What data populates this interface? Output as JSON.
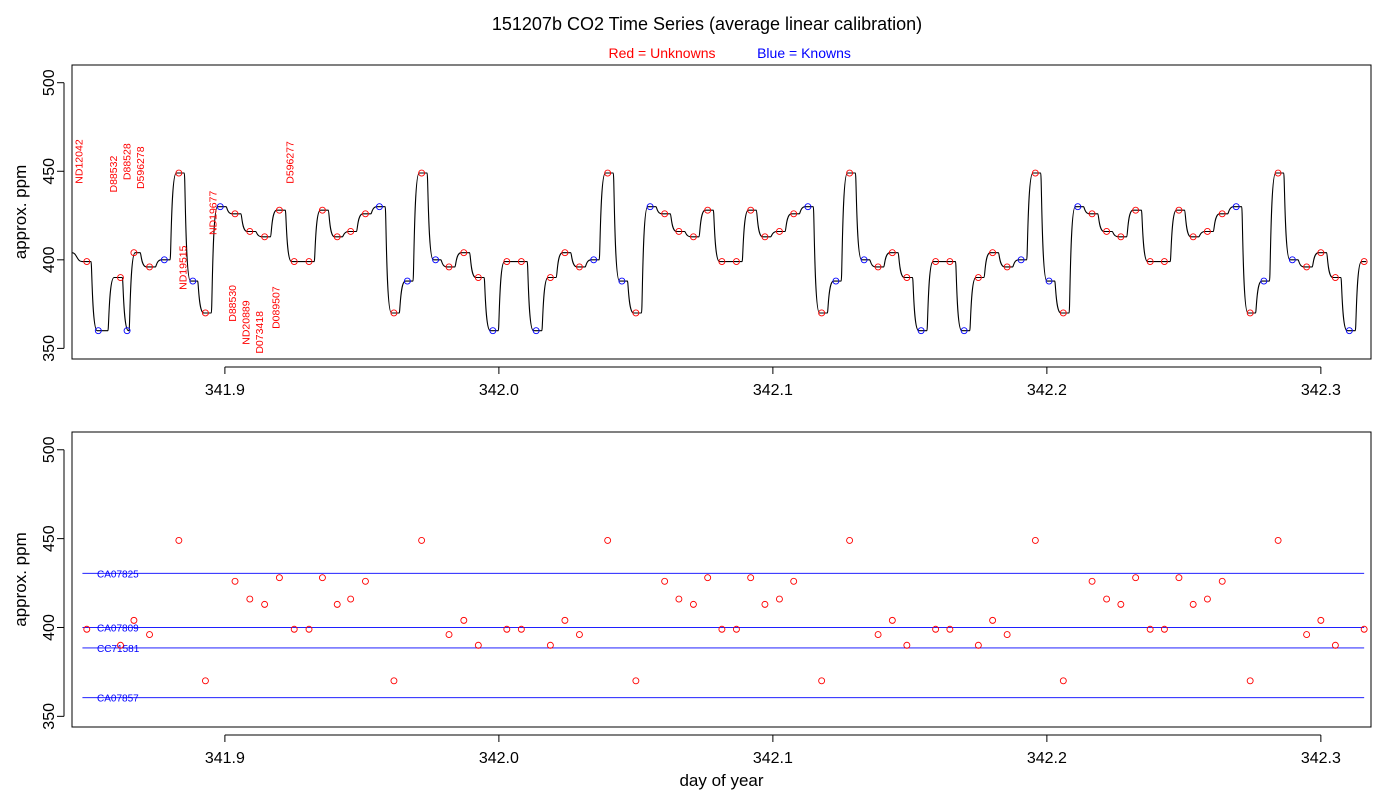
{
  "title": "151207b   CO2 Time Series (average linear calibration)",
  "legend": {
    "red_label": "Red = Unknowns",
    "blue_label": "Blue = Knowns"
  },
  "colors": {
    "unknown": "#ff0000",
    "known": "#0000ff",
    "trace": "#000000",
    "frame": "#000000"
  },
  "chart_data": [
    {
      "type": "line",
      "panel": "top",
      "title": "151207b   CO2 Time Series (average linear calibration)",
      "xlabel": "",
      "ylabel": "approx. ppm",
      "xlim": [
        341.8442,
        342.3183
      ],
      "ylim": [
        344,
        510
      ],
      "x_ticks": [
        341.9,
        342.0,
        342.1,
        342.2,
        342.3
      ],
      "x_tick_labels": [
        "341.9",
        "342.0",
        "342.1",
        "342.2",
        "342.3"
      ],
      "y_ticks": [
        350,
        400,
        450,
        500
      ],
      "y_tick_labels": [
        "350",
        "400",
        "450",
        "500"
      ],
      "series": [
        {
          "name": "Unknowns",
          "color": "#ff0000",
          "marker": "circle",
          "points": [
            [
              341.8496,
              399
            ],
            [
              341.8619,
              390
            ],
            [
              341.8668,
              404
            ],
            [
              341.8725,
              396
            ],
            [
              341.8832,
              449
            ],
            [
              341.8929,
              370
            ],
            [
              341.9037,
              426
            ],
            [
              341.9091,
              416
            ],
            [
              341.9145,
              413
            ],
            [
              341.9199,
              428
            ],
            [
              341.9253,
              399
            ],
            [
              341.9307,
              399
            ],
            [
              341.9356,
              428
            ],
            [
              341.941,
              413
            ],
            [
              341.9459,
              416
            ],
            [
              341.9513,
              426
            ],
            [
              341.9617,
              370
            ],
            [
              341.9718,
              449
            ],
            [
              341.9818,
              396
            ],
            [
              341.9872,
              404
            ],
            [
              341.9925,
              390
            ],
            [
              342.0029,
              399
            ],
            [
              342.0082,
              399
            ],
            [
              342.0188,
              390
            ],
            [
              342.0241,
              404
            ],
            [
              342.0294,
              396
            ],
            [
              342.0397,
              449
            ],
            [
              342.05,
              370
            ],
            [
              342.0605,
              426
            ],
            [
              342.0657,
              416
            ],
            [
              342.071,
              413
            ],
            [
              342.0762,
              428
            ],
            [
              342.0814,
              399
            ],
            [
              342.0867,
              399
            ],
            [
              342.0919,
              428
            ],
            [
              342.0971,
              413
            ],
            [
              342.1024,
              416
            ],
            [
              342.1076,
              426
            ],
            [
              342.1178,
              370
            ],
            [
              342.128,
              449
            ],
            [
              342.1384,
              396
            ],
            [
              342.1436,
              404
            ],
            [
              342.1489,
              390
            ],
            [
              342.1594,
              399
            ],
            [
              342.1646,
              399
            ],
            [
              342.175,
              390
            ],
            [
              342.1802,
              404
            ],
            [
              342.1855,
              396
            ],
            [
              342.1958,
              449
            ],
            [
              342.206,
              370
            ],
            [
              342.2165,
              426
            ],
            [
              342.2218,
              416
            ],
            [
              342.227,
              413
            ],
            [
              342.2324,
              428
            ],
            [
              342.2377,
              399
            ],
            [
              342.2429,
              399
            ],
            [
              342.2482,
              428
            ],
            [
              342.2534,
              413
            ],
            [
              342.2586,
              416
            ],
            [
              342.264,
              426
            ],
            [
              342.2742,
              370
            ],
            [
              342.2844,
              449
            ],
            [
              342.2948,
              396
            ],
            [
              342.3,
              404
            ],
            [
              342.3053,
              390
            ],
            [
              342.3158,
              399
            ]
          ]
        },
        {
          "name": "Knowns",
          "color": "#0000ff",
          "marker": "circle",
          "points": [
            [
              341.8538,
              360
            ],
            [
              341.8643,
              360
            ],
            [
              341.8779,
              400
            ],
            [
              341.8883,
              388
            ],
            [
              341.8983,
              430
            ],
            [
              341.9564,
              430
            ],
            [
              341.9666,
              388
            ],
            [
              341.9769,
              400
            ],
            [
              341.9978,
              360
            ],
            [
              342.0136,
              360
            ],
            [
              342.0346,
              400
            ],
            [
              342.0449,
              388
            ],
            [
              342.0552,
              430
            ],
            [
              342.1128,
              430
            ],
            [
              342.123,
              388
            ],
            [
              342.1333,
              400
            ],
            [
              342.1541,
              360
            ],
            [
              342.1698,
              360
            ],
            [
              342.1906,
              400
            ],
            [
              342.2008,
              388
            ],
            [
              342.2113,
              430
            ],
            [
              342.2691,
              430
            ],
            [
              342.2792,
              388
            ],
            [
              342.2896,
              400
            ],
            [
              342.3104,
              360
            ]
          ]
        }
      ],
      "start_value": [
        341.8442,
        404
      ],
      "annotations": [
        {
          "text": "ND12042",
          "x": 341.848,
          "y": 443,
          "group": "upper"
        },
        {
          "text": "D88532",
          "x": 341.8607,
          "y": 438,
          "group": "upper"
        },
        {
          "text": "D88528",
          "x": 341.8656,
          "y": 445,
          "group": "upper"
        },
        {
          "text": "D596278",
          "x": 341.8705,
          "y": 440,
          "group": "upper"
        },
        {
          "text": "ND19677",
          "x": 341.897,
          "y": 414,
          "group": "upper"
        },
        {
          "text": "D596277",
          "x": 341.925,
          "y": 443,
          "group": "upper"
        },
        {
          "text": "ND19515",
          "x": 341.886,
          "y": 383,
          "group": "lower"
        },
        {
          "text": "D88530",
          "x": 341.904,
          "y": 365,
          "group": "lower"
        },
        {
          "text": "ND20889",
          "x": 341.909,
          "y": 352,
          "group": "lower"
        },
        {
          "text": "D073418",
          "x": 341.914,
          "y": 347,
          "group": "lower"
        },
        {
          "text": "D089507",
          "x": 341.92,
          "y": 361,
          "group": "lower"
        }
      ]
    },
    {
      "type": "scatter",
      "panel": "bottom",
      "xlabel": "day of year",
      "ylabel": "approx. ppm",
      "xlim": [
        341.8442,
        342.3183
      ],
      "ylim": [
        344,
        510
      ],
      "x_ticks": [
        341.9,
        342.0,
        342.1,
        342.2,
        342.3
      ],
      "x_tick_labels": [
        "341.9",
        "342.0",
        "342.1",
        "342.2",
        "342.3"
      ],
      "y_ticks": [
        350,
        400,
        450,
        500
      ],
      "y_tick_labels": [
        "350",
        "400",
        "450",
        "500"
      ],
      "reference_lines": [
        {
          "name": "CA07825",
          "value": 430.5,
          "x_start": 341.848,
          "x_end": 342.3158
        },
        {
          "name": "CA07809",
          "value": 400.0,
          "x_start": 341.848,
          "x_end": 342.3158
        },
        {
          "name": "CC71581",
          "value": 388.5,
          "x_start": 341.848,
          "x_end": 342.3158
        },
        {
          "name": "CA07857",
          "value": 360.5,
          "x_start": 341.848,
          "x_end": 342.3158
        }
      ],
      "series_ref": "Unknowns"
    }
  ]
}
